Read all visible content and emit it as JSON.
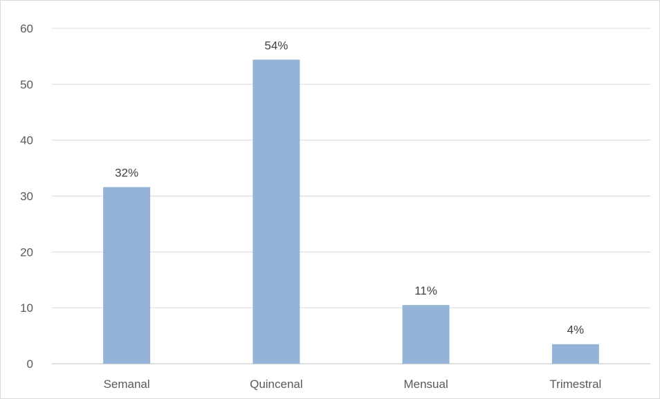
{
  "chart_data": {
    "type": "bar",
    "categories": [
      "Semanal",
      "Quincenal",
      "Mensual",
      "Trimestral"
    ],
    "values": [
      31.6,
      54.4,
      10.5,
      3.5
    ],
    "data_labels": [
      "32%",
      "54%",
      "11%",
      "4%"
    ],
    "ylim": [
      0,
      60
    ],
    "yticks": [
      "0",
      "10",
      "20",
      "30",
      "40",
      "50",
      "60"
    ],
    "grid": true,
    "legend": "none",
    "title": "",
    "xlabel": "",
    "ylabel": "",
    "colors": {
      "bar": "#95b3d7",
      "grid": "#d9d9d9",
      "axis": "#bfbfbf",
      "text": "#595959"
    }
  }
}
